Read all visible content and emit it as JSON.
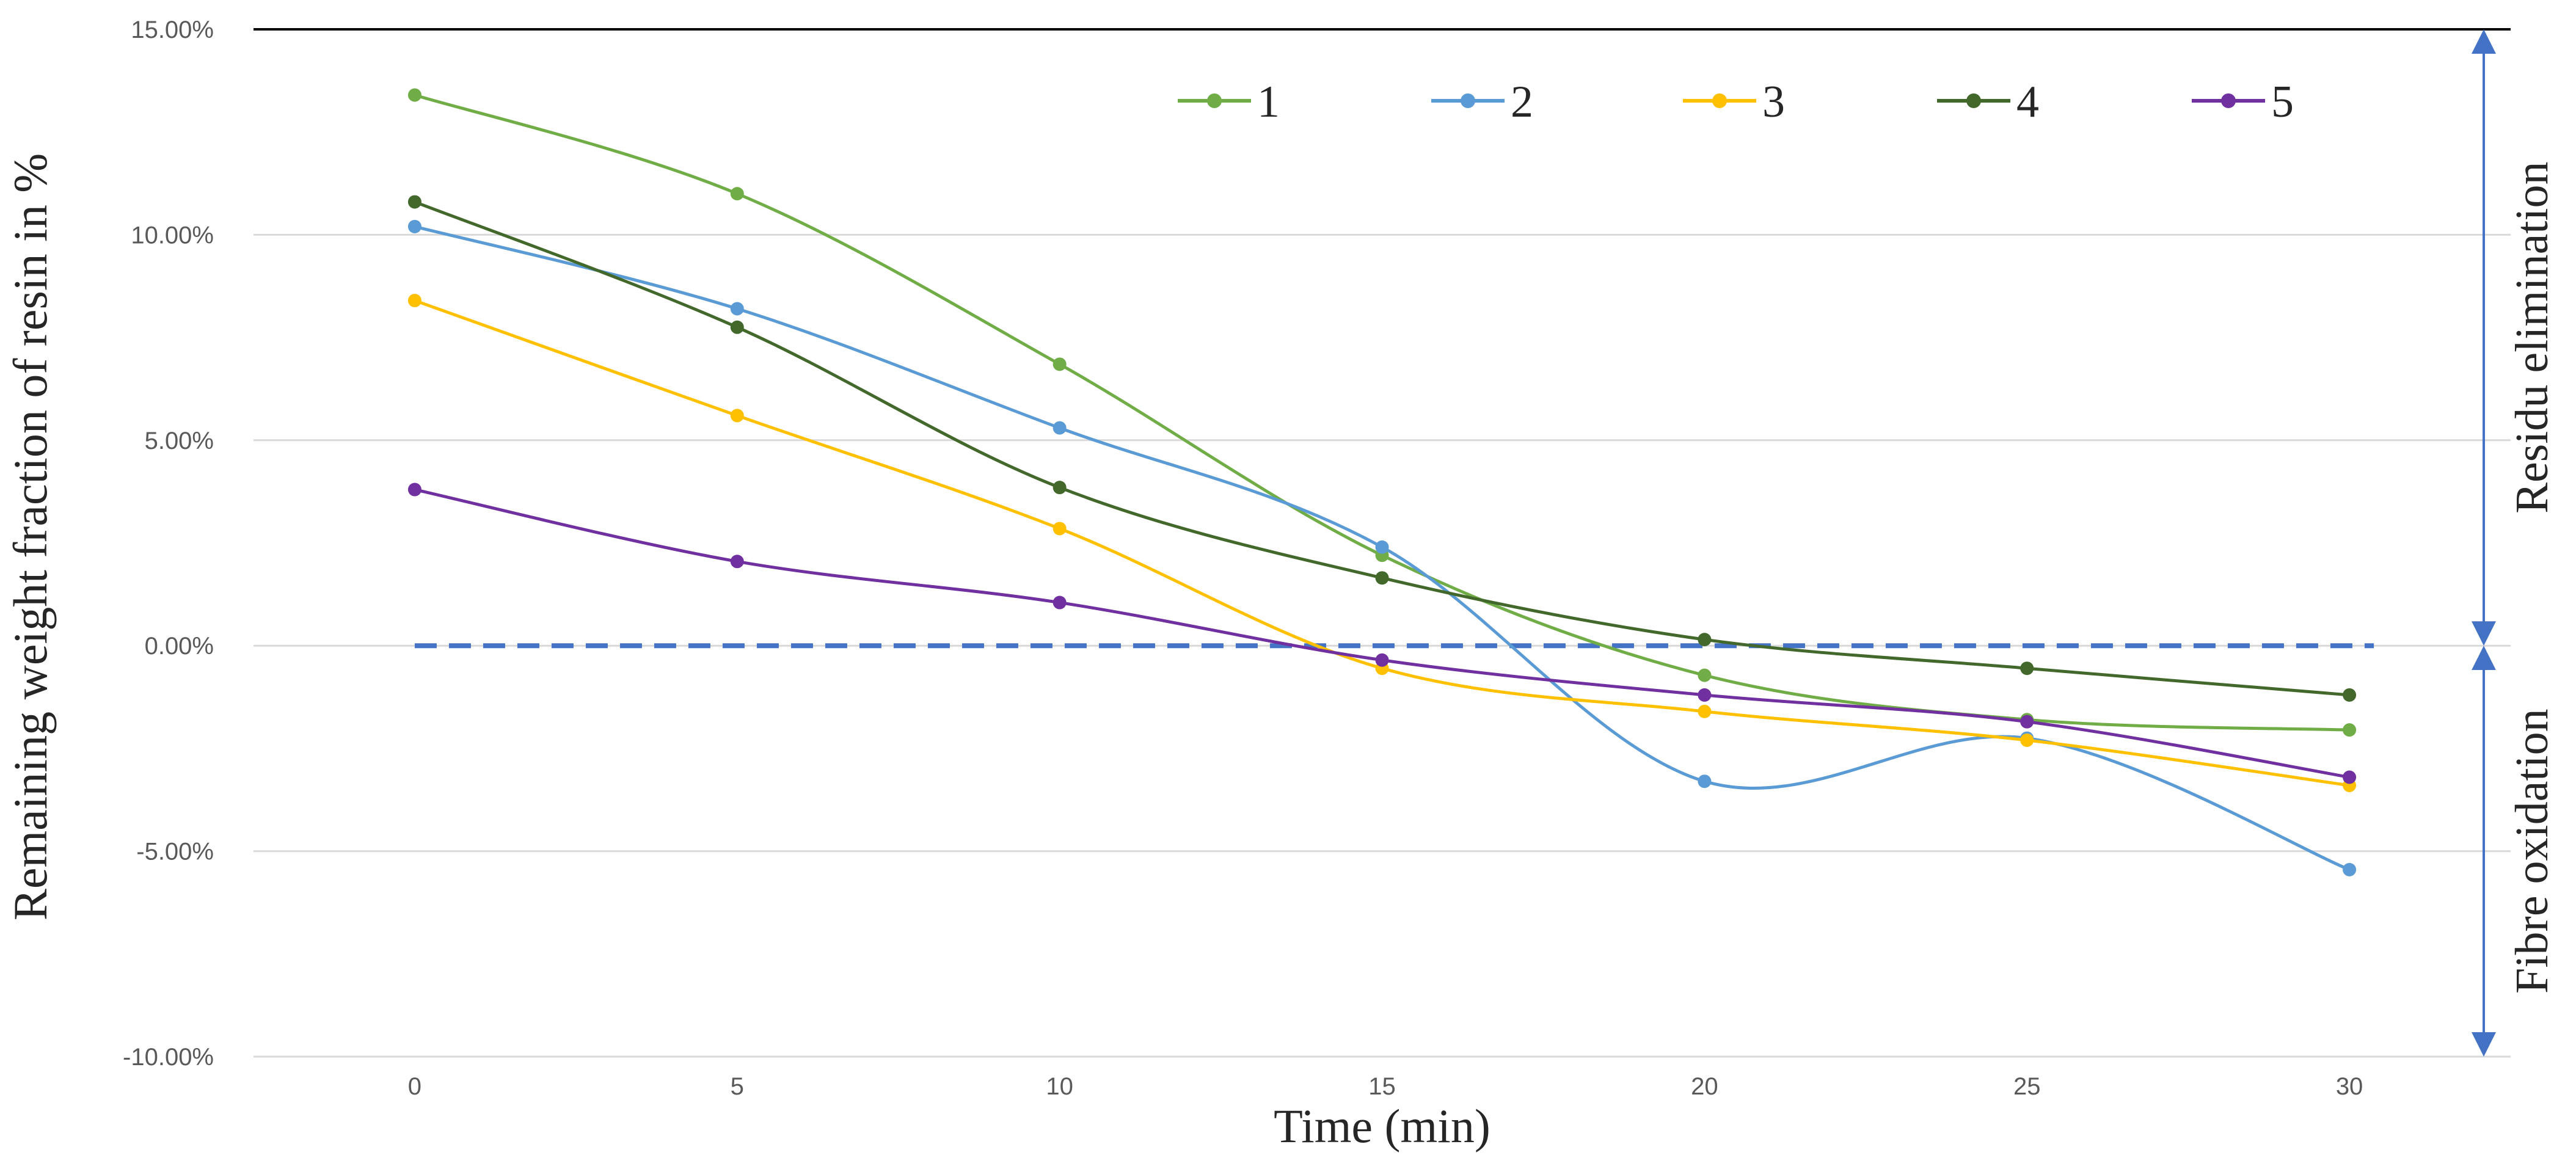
{
  "chart_data": {
    "type": "line",
    "title": "",
    "xlabel": "Time (min)",
    "ylabel": "Remaining weight fraction of resin in %",
    "x": [
      0,
      5,
      10,
      15,
      20,
      25,
      30
    ],
    "xlim": [
      -2.5,
      32.5
    ],
    "ylim": [
      -10,
      15
    ],
    "y_ticks": [
      -10,
      -5,
      0,
      5,
      10,
      15
    ],
    "y_tick_labels": [
      "-10.00%",
      "-5.00%",
      "0.00%",
      "5.00%",
      "10.00%",
      "15.00%"
    ],
    "x_tick_labels": [
      "0",
      "5",
      "10",
      "15",
      "20",
      "25",
      "30"
    ],
    "grid": true,
    "smoothed": true,
    "legend_position": "top",
    "series": [
      {
        "name": "1",
        "color": "#70AD47",
        "values": [
          13.4,
          11.0,
          6.85,
          2.2,
          -0.72,
          -1.8,
          -2.05
        ]
      },
      {
        "name": "2",
        "color": "#5B9BD5",
        "values": [
          10.2,
          8.2,
          5.3,
          2.4,
          -3.3,
          -2.25,
          -5.45
        ]
      },
      {
        "name": "3",
        "color": "#FFC000",
        "values": [
          8.4,
          5.6,
          2.85,
          -0.55,
          -1.6,
          -2.3,
          -3.4
        ]
      },
      {
        "name": "4",
        "color": "#43682B",
        "values": [
          10.8,
          7.75,
          3.85,
          1.65,
          0.15,
          -0.55,
          -1.2
        ]
      },
      {
        "name": "5",
        "color": "#7030A0",
        "values": [
          3.8,
          2.05,
          1.05,
          -0.35,
          -1.2,
          -1.85,
          -3.2
        ]
      }
    ],
    "reference_line": {
      "y": 0,
      "color": "#4472C4",
      "style": "dashed"
    },
    "annotations": [
      {
        "text": "Residu elimination",
        "range": [
          0,
          15
        ]
      },
      {
        "text": "Fibre oxidation",
        "range": [
          -10,
          0
        ]
      }
    ],
    "annotation_color": "#4472C4"
  }
}
